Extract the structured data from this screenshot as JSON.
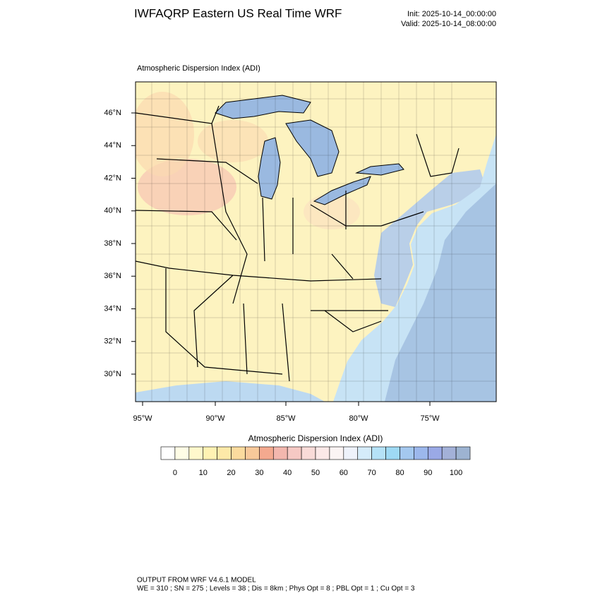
{
  "header": {
    "title": "IWFAQRP Eastern US Real Time WRF",
    "init": "Init: 2025-10-14_00:00:00",
    "valid": "Valid: 2025-10-14_08:00:00"
  },
  "map": {
    "title": "Atmospheric Dispersion Index   (ADI)",
    "lat_labels": [
      "46°N",
      "44°N",
      "42°N",
      "40°N",
      "38°N",
      "36°N",
      "34°N",
      "32°N",
      "30°N"
    ],
    "lon_labels": [
      "95°W",
      "90°W",
      "85°W",
      "80°W",
      "75°W"
    ]
  },
  "colorbar": {
    "title": "Atmospheric Dispersion Index  (ADI)",
    "colors": [
      "#ffffff",
      "#fffde6",
      "#fff8cc",
      "#fff2b3",
      "#fde9a8",
      "#fbdb9e",
      "#f8c99a",
      "#f4a98f",
      "#f3b7ae",
      "#f6c9c4",
      "#f9dbd8",
      "#fce9e8",
      "#fbf4f4",
      "#eef2fb",
      "#d5ecfa",
      "#b5e2f7",
      "#9ed9f4",
      "#a4c8ef",
      "#9cb7ec",
      "#9aa9e6",
      "#a3b1d8",
      "#9db3d1"
    ],
    "labels": [
      "0",
      "10",
      "20",
      "30",
      "40",
      "50",
      "60",
      "70",
      "80",
      "90",
      "100"
    ]
  },
  "footer": {
    "line1": "OUTPUT FROM WRF V4.6.1 MODEL",
    "line2": "WE = 310 ; SN = 275 ; Levels = 38 ; Dis = 8km ; Phys Opt = 8 ; PBL Opt = 1 ; Cu Opt = 3"
  }
}
